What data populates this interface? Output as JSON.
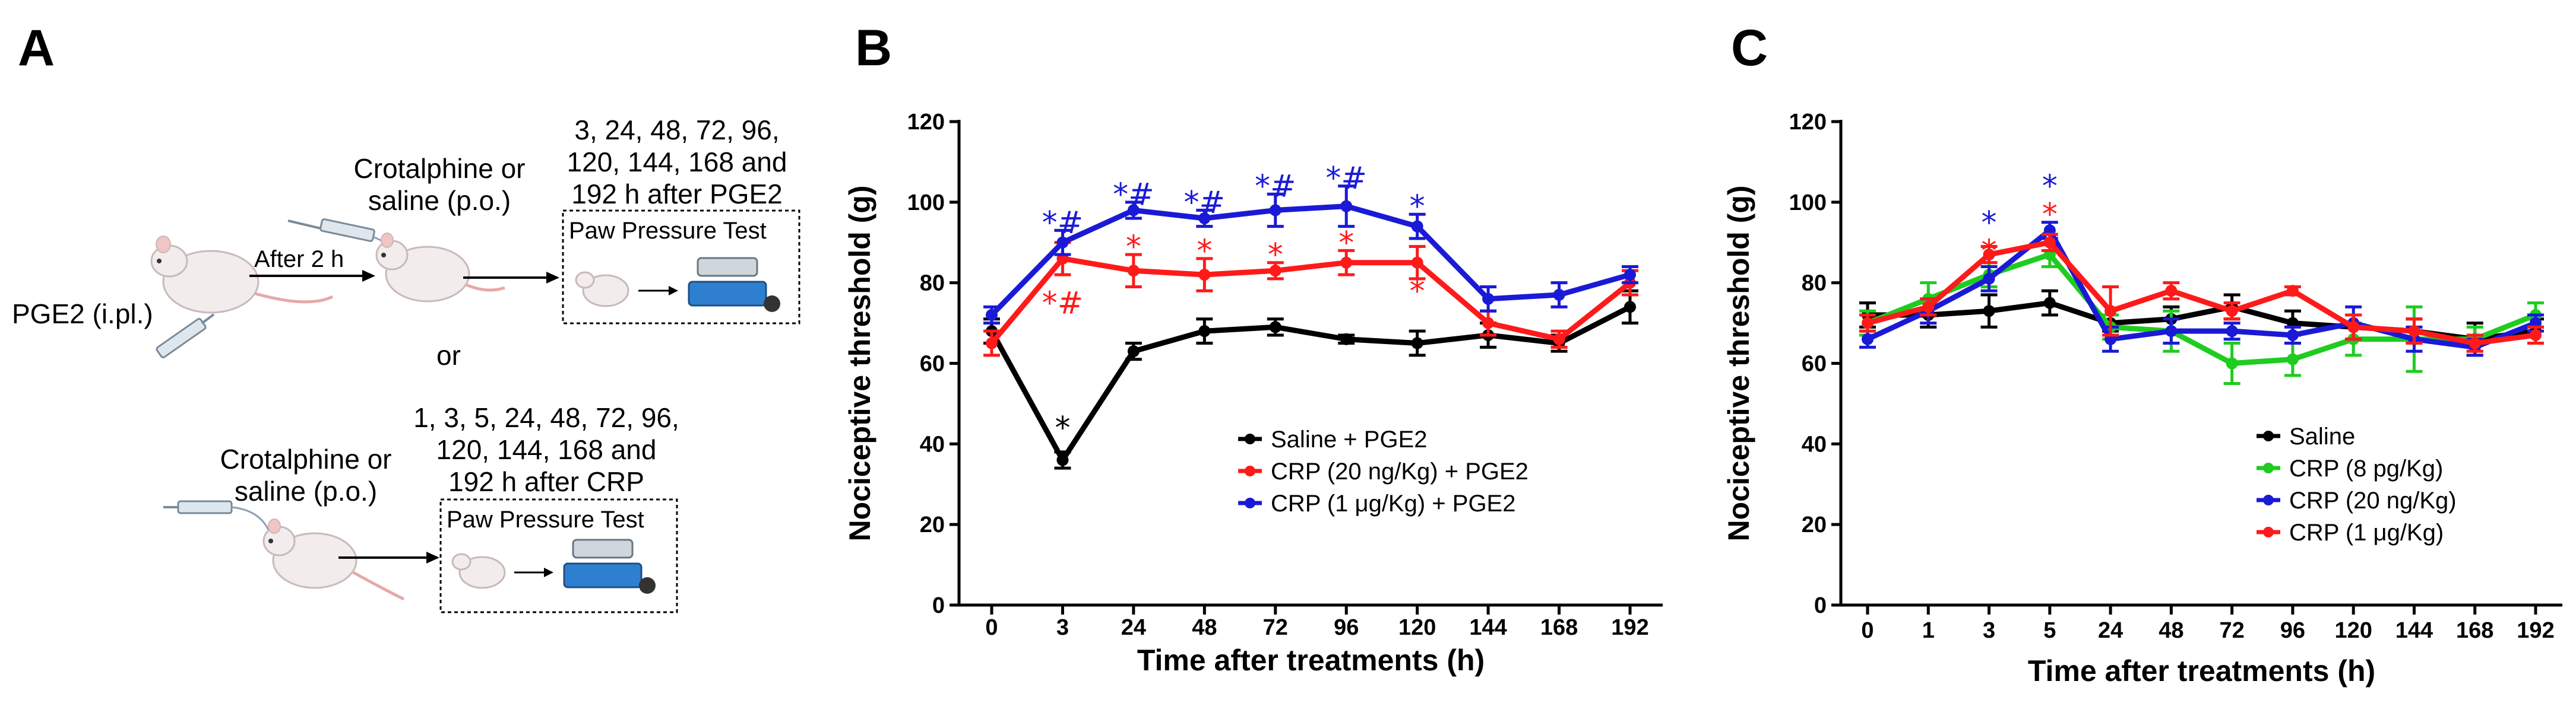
{
  "panels": {
    "A": {
      "letter": "A",
      "top_timing": [
        "3, 24, 48, 72, 96,",
        "120, 144, 168 and",
        "192 h after PGE2"
      ],
      "top_drug": [
        "Crotalphine or",
        "saline (p.o.)"
      ],
      "after_label": "After 2 h",
      "pge2_label": "PGE2 (i.pl.)",
      "test_label": "Paw Pressure Test",
      "or_label": "or",
      "bottom_timing": [
        "1, 3,  5, 24, 48, 72, 96,",
        "120, 144, 168 and",
        "192 h after CRP"
      ],
      "bottom_drug": [
        "Crotalphine or",
        "saline (p.o.)"
      ],
      "bottom_test_label": "Paw Pressure Test"
    },
    "B": {
      "letter": "B"
    },
    "C": {
      "letter": "C"
    }
  },
  "colors": {
    "black": "#000000",
    "red": "#ff1a1a",
    "blue": "#1a1ad6",
    "green": "#1fcc1f",
    "device": "#2f7fd0"
  },
  "chart_data": [
    {
      "id": "B",
      "type": "line",
      "categories": [
        "0",
        "3",
        "24",
        "48",
        "72",
        "96",
        "120",
        "144",
        "168",
        "192"
      ],
      "ylabel": "Nociceptive threshold (g)",
      "xlabel": "Time after treatments (h)",
      "ylim": [
        0,
        120
      ],
      "yticks": [
        "0",
        "20",
        "40",
        "60",
        "80",
        "100",
        "120"
      ],
      "legend_position": "center-right",
      "series": [
        {
          "name": "Saline + PGE2",
          "color": "#000000",
          "values": [
            68,
            36,
            63,
            68,
            69,
            66,
            65,
            67,
            65,
            74
          ],
          "err": [
            3,
            2,
            2,
            3,
            2,
            1,
            3,
            3,
            2,
            4
          ]
        },
        {
          "name": "CRP (20 ng/Kg) + PGE2",
          "color": "#ff1a1a",
          "values": [
            65,
            86,
            83,
            82,
            83,
            85,
            85,
            70,
            66,
            80
          ],
          "err": [
            3,
            4,
            4,
            4,
            2,
            3,
            4,
            3,
            2,
            3
          ]
        },
        {
          "name": "CRP (1 μg/Kg) + PGE2",
          "color": "#1a1ad6",
          "values": [
            72,
            90,
            98,
            96,
            98,
            99,
            94,
            76,
            77,
            82
          ],
          "err": [
            2,
            3,
            2,
            2,
            4,
            5,
            3,
            3,
            3,
            2
          ]
        }
      ],
      "annotations": [
        {
          "x": "3",
          "text": "*",
          "color": "#000000",
          "at": 44
        },
        {
          "x": "3",
          "text": "*#",
          "color": "#1a1ad6",
          "at": 95
        },
        {
          "x": "3",
          "text": "*#",
          "color": "#ff1a1a",
          "at": 75
        },
        {
          "x": "24",
          "text": "*#",
          "color": "#1a1ad6",
          "at": 102
        },
        {
          "x": "24",
          "text": "*",
          "color": "#ff1a1a",
          "at": 89
        },
        {
          "x": "48",
          "text": "*#",
          "color": "#1a1ad6",
          "at": 100
        },
        {
          "x": "48",
          "text": "*",
          "color": "#ff1a1a",
          "at": 88
        },
        {
          "x": "72",
          "text": "*#",
          "color": "#1a1ad6",
          "at": 104
        },
        {
          "x": "72",
          "text": "*",
          "color": "#ff1a1a",
          "at": 87
        },
        {
          "x": "96",
          "text": "*#",
          "color": "#1a1ad6",
          "at": 106
        },
        {
          "x": "96",
          "text": "*",
          "color": "#ff1a1a",
          "at": 90
        },
        {
          "x": "120",
          "text": "*",
          "color": "#1a1ad6",
          "at": 99
        },
        {
          "x": "120",
          "text": "*",
          "color": "#ff1a1a",
          "at": 78
        }
      ]
    },
    {
      "id": "C",
      "type": "line",
      "categories": [
        "0",
        "1",
        "3",
        "5",
        "24",
        "48",
        "72",
        "96",
        "120",
        "144",
        "168",
        "192"
      ],
      "ylabel": "Nociceptive threshold (g)",
      "xlabel": "Time after treatments (h)",
      "ylim": [
        0,
        120
      ],
      "yticks": [
        "0",
        "20",
        "40",
        "60",
        "80",
        "100",
        "120"
      ],
      "legend_position": "bottom-center",
      "series": [
        {
          "name": "Saline",
          "color": "#000000",
          "values": [
            72,
            72,
            73,
            75,
            70,
            71,
            74,
            70,
            69,
            68,
            66,
            68
          ],
          "err": [
            3,
            3,
            4,
            3,
            2,
            3,
            3,
            3,
            3,
            3,
            4,
            3
          ]
        },
        {
          "name": "CRP (8 pg/Kg)",
          "color": "#1fcc1f",
          "values": [
            70,
            76,
            82,
            87,
            69,
            68,
            60,
            61,
            66,
            66,
            66,
            72
          ],
          "err": [
            3,
            4,
            3,
            3,
            3,
            5,
            5,
            4,
            4,
            8,
            3,
            3
          ]
        },
        {
          "name": "CRP (20 ng/Kg)",
          "color": "#1a1ad6",
          "values": [
            66,
            73,
            81,
            93,
            66,
            68,
            68,
            67,
            70,
            66,
            64,
            70
          ],
          "err": [
            2,
            3,
            3,
            2,
            3,
            3,
            2,
            2,
            4,
            3,
            2,
            2
          ]
        },
        {
          "name": "CRP (1 μg/Kg)",
          "color": "#ff1a1a",
          "values": [
            70,
            74,
            87,
            90,
            73,
            78,
            73,
            78,
            69,
            68,
            65,
            67
          ],
          "err": [
            2,
            2,
            2,
            2,
            6,
            2,
            2,
            1,
            3,
            3,
            2,
            2
          ]
        }
      ],
      "annotations": [
        {
          "x": "3",
          "text": "*",
          "color": "#1a1ad6",
          "at": 95
        },
        {
          "x": "3",
          "text": "*",
          "color": "#ff1a1a",
          "at": 88
        },
        {
          "x": "5",
          "text": "*",
          "color": "#1a1ad6",
          "at": 104
        },
        {
          "x": "5",
          "text": "*",
          "color": "#ff1a1a",
          "at": 97
        }
      ]
    }
  ]
}
